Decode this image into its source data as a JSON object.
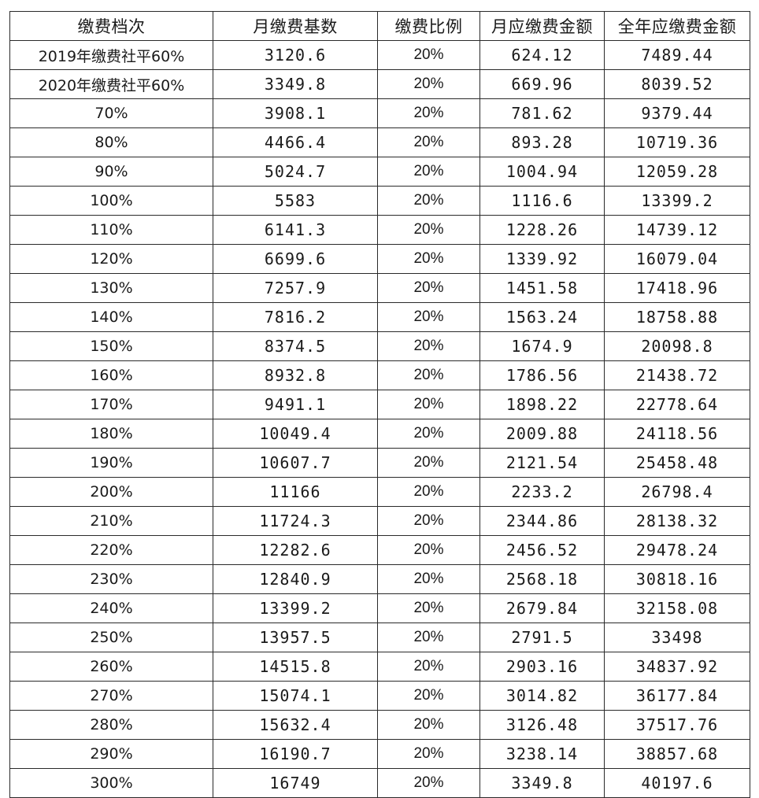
{
  "table": {
    "headers": [
      "缴费档次",
      "月缴费基数",
      "缴费比例",
      "月应缴费金额",
      "全年应缴费金额"
    ],
    "rows": [
      [
        "2019年缴费社平60%",
        "3120.6",
        "20%",
        "624.12",
        "7489.44"
      ],
      [
        "2020年缴费社平60%",
        "3349.8",
        "20%",
        "669.96",
        "8039.52"
      ],
      [
        "70%",
        "3908.1",
        "20%",
        "781.62",
        "9379.44"
      ],
      [
        "80%",
        "4466.4",
        "20%",
        "893.28",
        "10719.36"
      ],
      [
        "90%",
        "5024.7",
        "20%",
        "1004.94",
        "12059.28"
      ],
      [
        "100%",
        "5583",
        "20%",
        "1116.6",
        "13399.2"
      ],
      [
        "110%",
        "6141.3",
        "20%",
        "1228.26",
        "14739.12"
      ],
      [
        "120%",
        "6699.6",
        "20%",
        "1339.92",
        "16079.04"
      ],
      [
        "130%",
        "7257.9",
        "20%",
        "1451.58",
        "17418.96"
      ],
      [
        "140%",
        "7816.2",
        "20%",
        "1563.24",
        "18758.88"
      ],
      [
        "150%",
        "8374.5",
        "20%",
        "1674.9",
        "20098.8"
      ],
      [
        "160%",
        "8932.8",
        "20%",
        "1786.56",
        "21438.72"
      ],
      [
        "170%",
        "9491.1",
        "20%",
        "1898.22",
        "22778.64"
      ],
      [
        "180%",
        "10049.4",
        "20%",
        "2009.88",
        "24118.56"
      ],
      [
        "190%",
        "10607.7",
        "20%",
        "2121.54",
        "25458.48"
      ],
      [
        "200%",
        "11166",
        "20%",
        "2233.2",
        "26798.4"
      ],
      [
        "210%",
        "11724.3",
        "20%",
        "2344.86",
        "28138.32"
      ],
      [
        "220%",
        "12282.6",
        "20%",
        "2456.52",
        "29478.24"
      ],
      [
        "230%",
        "12840.9",
        "20%",
        "2568.18",
        "30818.16"
      ],
      [
        "240%",
        "13399.2",
        "20%",
        "2679.84",
        "32158.08"
      ],
      [
        "250%",
        "13957.5",
        "20%",
        "2791.5",
        "33498"
      ],
      [
        "260%",
        "14515.8",
        "20%",
        "2903.16",
        "34837.92"
      ],
      [
        "270%",
        "15074.1",
        "20%",
        "3014.82",
        "36177.84"
      ],
      [
        "280%",
        "15632.4",
        "20%",
        "3126.48",
        "37517.76"
      ],
      [
        "290%",
        "16190.7",
        "20%",
        "3238.14",
        "38857.68"
      ],
      [
        "300%",
        "16749",
        "20%",
        "3349.8",
        "40197.6"
      ]
    ]
  }
}
